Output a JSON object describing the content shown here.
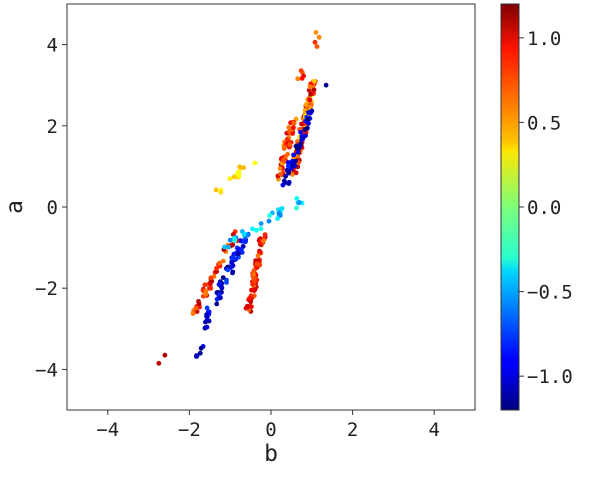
{
  "chart_data": {
    "type": "scatter",
    "xlabel": "b",
    "ylabel": "a",
    "xlim": [
      -5,
      5
    ],
    "ylim": [
      -5,
      5
    ],
    "x_ticks": [
      -4,
      -2,
      0,
      2,
      4
    ],
    "x_tick_labels": [
      "−4",
      "−2",
      "0",
      "2",
      "4"
    ],
    "y_ticks": [
      -4,
      -2,
      0,
      2,
      4
    ],
    "y_tick_labels": [
      "−4",
      "−2",
      "0",
      "2",
      "4"
    ],
    "grid": false,
    "colorbar": {
      "colormap": "jet",
      "range": [
        -1.2,
        1.2
      ],
      "ticks": [
        -1.0,
        -0.5,
        0.0,
        0.5,
        1.0
      ],
      "tick_labels": [
        "−1.0",
        "−0.5",
        "0.0",
        "0.5",
        "1.0"
      ]
    },
    "clusters": [
      {
        "x_range": [
          0.55,
          1.05
        ],
        "y_range": [
          0.8,
          3.1
        ],
        "c_range": [
          0.3,
          1.1
        ],
        "count": 120
      },
      {
        "x_range": [
          0.2,
          0.55
        ],
        "y_range": [
          0.7,
          2.1
        ],
        "c_range": [
          0.5,
          1.0
        ],
        "count": 50
      },
      {
        "x_range": [
          0.35,
          1.0
        ],
        "y_range": [
          0.6,
          2.4
        ],
        "c_range": [
          -1.2,
          -0.8
        ],
        "count": 45
      },
      {
        "x_range": [
          0.7,
          1.25
        ],
        "y_range": [
          3.2,
          4.3
        ],
        "c_range": [
          0.5,
          1.0
        ],
        "count": 8
      },
      {
        "x_range": [
          -0.55,
          -0.2
        ],
        "y_range": [
          -2.6,
          -0.7
        ],
        "c_range": [
          0.6,
          1.1
        ],
        "count": 70
      },
      {
        "x_range": [
          -1.7,
          -0.6
        ],
        "y_range": [
          -3.0,
          -0.7
        ],
        "c_range": [
          -1.2,
          -0.7
        ],
        "count": 70
      },
      {
        "x_range": [
          -2.0,
          -0.8
        ],
        "y_range": [
          -2.8,
          -0.6
        ],
        "c_range": [
          0.6,
          1.1
        ],
        "count": 45
      },
      {
        "x_range": [
          -1.2,
          0.8
        ],
        "y_range": [
          -1.0,
          0.2
        ],
        "c_range": [
          -0.6,
          -0.2
        ],
        "count": 30
      },
      {
        "x_range": [
          -1.3,
          -0.4
        ],
        "y_range": [
          0.4,
          1.2
        ],
        "c_range": [
          0.2,
          0.5
        ],
        "count": 15
      },
      {
        "x_range": [
          -1.9,
          -1.6
        ],
        "y_range": [
          -3.8,
          -3.3
        ],
        "c_range": [
          -1.2,
          -0.9
        ],
        "count": 6
      }
    ],
    "points": [
      {
        "x": -2.75,
        "y": -3.85,
        "c": 1.05
      },
      {
        "x": -2.6,
        "y": -3.65,
        "c": 1.1
      },
      {
        "x": 1.35,
        "y": 3.0,
        "c": -1.15
      },
      {
        "x": 1.1,
        "y": 4.3,
        "c": 0.55
      }
    ]
  }
}
